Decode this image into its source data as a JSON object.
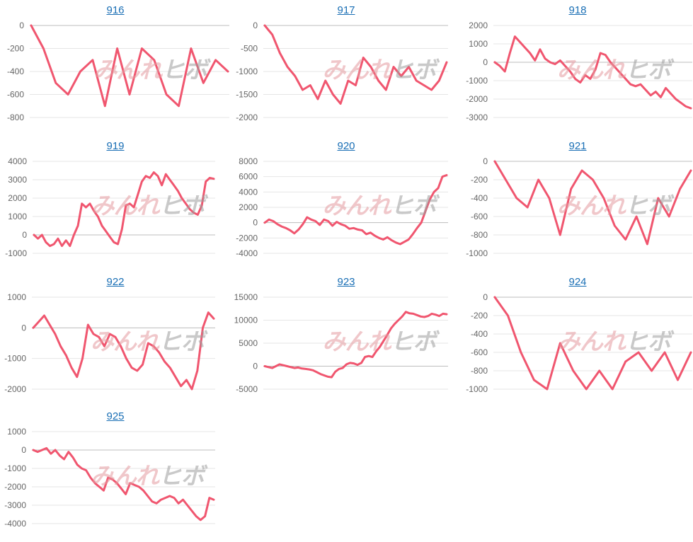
{
  "colors": {
    "line": "#f0566f",
    "link": "#1a6fb5"
  },
  "watermark": {
    "part1": "みんれ",
    "part2": "ヒボ"
  },
  "chart_data": [
    {
      "type": "line",
      "title": "916",
      "ylim": [
        -800,
        0
      ],
      "yticks": [
        0,
        -200,
        -400,
        -600,
        -800
      ],
      "values": [
        0,
        -200,
        -500,
        -600,
        -400,
        -300,
        -700,
        -200,
        -600,
        -200,
        -300,
        -600,
        -700,
        -200,
        -500,
        -300,
        -400
      ]
    },
    {
      "type": "line",
      "title": "917",
      "ylim": [
        -2000,
        0
      ],
      "yticks": [
        0,
        -500,
        -1000,
        -1500,
        -2000
      ],
      "values": [
        0,
        -200,
        -600,
        -900,
        -1100,
        -1400,
        -1300,
        -1600,
        -1200,
        -1500,
        -1700,
        -1200,
        -1300,
        -700,
        -900,
        -1200,
        -1400,
        -900,
        -1100,
        -900,
        -1200,
        -1300,
        -1400,
        -1200,
        -800
      ]
    },
    {
      "type": "line",
      "title": "918",
      "ylim": [
        -3000,
        2000
      ],
      "yticks": [
        2000,
        1000,
        0,
        -1000,
        -2000,
        -3000
      ],
      "values": [
        0,
        -200,
        -500,
        500,
        1400,
        1100,
        800,
        500,
        100,
        700,
        200,
        0,
        -100,
        100,
        -200,
        -500,
        -900,
        -1100,
        -700,
        -900,
        -400,
        500,
        400,
        0,
        -300,
        -600,
        -900,
        -1200,
        -1300,
        -1200,
        -1500,
        -1800,
        -1600,
        -1900,
        -1400,
        -1700,
        -2000,
        -2200,
        -2400,
        -2500
      ]
    },
    {
      "type": "line",
      "title": "919",
      "ylim": [
        -1000,
        4000
      ],
      "yticks": [
        4000,
        3000,
        2000,
        1000,
        0,
        -1000
      ],
      "values": [
        0,
        -200,
        0,
        -400,
        -600,
        -500,
        -200,
        -600,
        -300,
        -600,
        0,
        500,
        1700,
        1500,
        1700,
        1300,
        1000,
        500,
        200,
        -100,
        -400,
        -500,
        300,
        1600,
        1700,
        1500,
        2200,
        2900,
        3200,
        3100,
        3400,
        3200,
        2700,
        3300,
        3000,
        2700,
        2400,
        2000,
        1700,
        1400,
        1200,
        1100,
        1600,
        2900,
        3100,
        3050
      ]
    },
    {
      "type": "line",
      "title": "920",
      "ylim": [
        -4000,
        8000
      ],
      "yticks": [
        8000,
        6000,
        4000,
        2000,
        0,
        -2000,
        -4000
      ],
      "values": [
        0,
        400,
        200,
        -200,
        -500,
        -700,
        -1000,
        -1400,
        -900,
        -200,
        700,
        400,
        200,
        -300,
        400,
        200,
        -400,
        100,
        -200,
        -400,
        -800,
        -700,
        -900,
        -1000,
        -1500,
        -1300,
        -1700,
        -2000,
        -2200,
        -1900,
        -2300,
        -2600,
        -2800,
        -2500,
        -2200,
        -1500,
        -700,
        0,
        1500,
        3000,
        4000,
        4500,
        6000,
        6200
      ]
    },
    {
      "type": "line",
      "title": "921",
      "ylim": [
        -1000,
        0
      ],
      "yticks": [
        0,
        -200,
        -400,
        -600,
        -800,
        -1000
      ],
      "values": [
        0,
        -200,
        -400,
        -500,
        -200,
        -400,
        -800,
        -300,
        -100,
        -200,
        -400,
        -700,
        -850,
        -600,
        -900,
        -400,
        -600,
        -300,
        -100
      ]
    },
    {
      "type": "line",
      "title": "922",
      "ylim": [
        -2000,
        1000
      ],
      "yticks": [
        1000,
        0,
        -1000,
        -2000
      ],
      "values": [
        0,
        200,
        400,
        100,
        -200,
        -600,
        -900,
        -1300,
        -1600,
        -1000,
        100,
        -200,
        -300,
        -600,
        -200,
        -300,
        -600,
        -1000,
        -1300,
        -1400,
        -1200,
        -500,
        -600,
        -800,
        -1100,
        -1300,
        -1600,
        -1900,
        -1700,
        -2000,
        -1400,
        0,
        500,
        300
      ]
    },
    {
      "type": "line",
      "title": "923",
      "ylim": [
        -5000,
        15000
      ],
      "yticks": [
        15000,
        10000,
        5000,
        0,
        -5000
      ],
      "values": [
        0,
        -200,
        -400,
        0,
        400,
        200,
        0,
        -200,
        -400,
        -300,
        -500,
        -600,
        -700,
        -900,
        -1300,
        -1700,
        -2000,
        -2300,
        -2400,
        -1200,
        -600,
        -400,
        400,
        700,
        600,
        300,
        700,
        2000,
        2200,
        2000,
        3200,
        4200,
        5500,
        6800,
        8200,
        9200,
        10000,
        10800,
        11800,
        11500,
        11400,
        11100,
        10800,
        10700,
        10900,
        11400,
        11200,
        10900,
        11400,
        11300
      ]
    },
    {
      "type": "line",
      "title": "924",
      "ylim": [
        -1000,
        0
      ],
      "yticks": [
        0,
        -200,
        -400,
        -600,
        -800,
        -1000
      ],
      "values": [
        0,
        -200,
        -600,
        -900,
        -1000,
        -500,
        -800,
        -1000,
        -800,
        -1000,
        -700,
        -600,
        -800,
        -600,
        -900,
        -600
      ]
    },
    {
      "type": "line",
      "title": "925",
      "ylim": [
        -4000,
        1000
      ],
      "yticks": [
        1000,
        0,
        -1000,
        -2000,
        -3000,
        -4000
      ],
      "values": [
        0,
        -100,
        0,
        100,
        -200,
        0,
        -300,
        -500,
        -100,
        -400,
        -800,
        -1000,
        -1100,
        -1500,
        -1800,
        -2000,
        -2200,
        -1500,
        -1600,
        -1800,
        -2100,
        -2400,
        -1800,
        -1900,
        -2000,
        -2200,
        -2500,
        -2800,
        -2900,
        -2700,
        -2600,
        -2500,
        -2600,
        -2900,
        -2700,
        -3000,
        -3300,
        -3600,
        -3800,
        -3600,
        -2600,
        -2700
      ]
    }
  ]
}
